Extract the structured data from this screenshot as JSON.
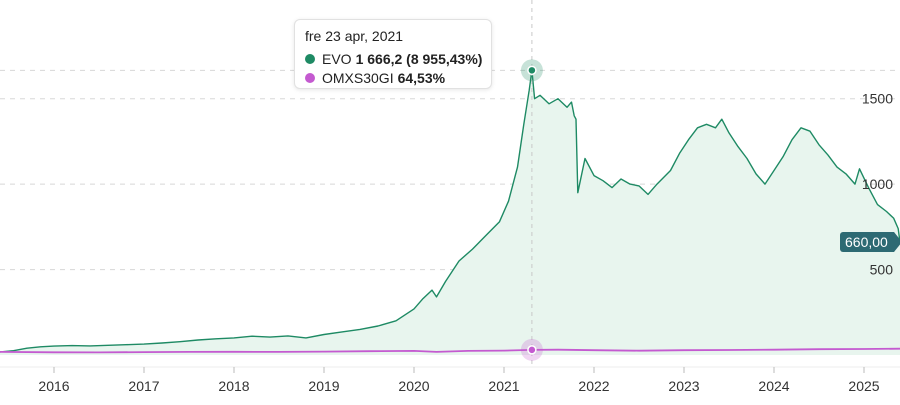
{
  "colors": {
    "evo": "#1e8a64",
    "evo_fill": "#e8f5ee",
    "omx": "#c45ad0",
    "gridline": "#d8d8d8",
    "badge": "#2d6a73"
  },
  "tooltip": {
    "date": "fre 23 apr, 2021",
    "rows": [
      {
        "name": "EVO",
        "value": "1 666,2 (8 955,43%)",
        "color": "#1e8a64"
      },
      {
        "name": "OMXS30GI",
        "value": "64,53%",
        "color": "#c45ad0"
      }
    ]
  },
  "last_price_label": "660,00",
  "chart_data": {
    "type": "line",
    "y_ticks": [
      {
        "value": 500,
        "label": "500"
      },
      {
        "value": 1000,
        "label": "1000"
      },
      {
        "value": 1500,
        "label": "1500"
      }
    ],
    "x_ticks": [
      {
        "year": 2016,
        "label": "2016"
      },
      {
        "year": 2017,
        "label": "2017"
      },
      {
        "year": 2018,
        "label": "2018"
      },
      {
        "year": 2019,
        "label": "2019"
      },
      {
        "year": 2020,
        "label": "2020"
      },
      {
        "year": 2021,
        "label": "2021"
      },
      {
        "year": 2022,
        "label": "2022"
      },
      {
        "year": 2023,
        "label": "2023"
      },
      {
        "year": 2024,
        "label": "2024"
      },
      {
        "year": 2025,
        "label": "2025"
      }
    ],
    "xlim": [
      2015.4,
      2025.4
    ],
    "ylim": [
      0,
      1750
    ],
    "highlight": {
      "x": 2021.31,
      "evo": 1666.2,
      "omx_price": 30
    },
    "grid": "horizontal",
    "series": [
      {
        "name": "EVO",
        "area": true,
        "points": [
          [
            2015.4,
            18
          ],
          [
            2015.55,
            25
          ],
          [
            2015.7,
            40
          ],
          [
            2015.85,
            48
          ],
          [
            2016.0,
            52
          ],
          [
            2016.2,
            55
          ],
          [
            2016.4,
            53
          ],
          [
            2016.6,
            57
          ],
          [
            2016.8,
            60
          ],
          [
            2017.0,
            64
          ],
          [
            2017.2,
            70
          ],
          [
            2017.4,
            78
          ],
          [
            2017.6,
            88
          ],
          [
            2017.8,
            95
          ],
          [
            2018.0,
            100
          ],
          [
            2018.2,
            110
          ],
          [
            2018.4,
            105
          ],
          [
            2018.6,
            112
          ],
          [
            2018.8,
            100
          ],
          [
            2019.0,
            120
          ],
          [
            2019.2,
            135
          ],
          [
            2019.4,
            150
          ],
          [
            2019.6,
            170
          ],
          [
            2019.8,
            200
          ],
          [
            2020.0,
            270
          ],
          [
            2020.1,
            330
          ],
          [
            2020.2,
            380
          ],
          [
            2020.25,
            340
          ],
          [
            2020.35,
            430
          ],
          [
            2020.5,
            550
          ],
          [
            2020.65,
            620
          ],
          [
            2020.8,
            700
          ],
          [
            2020.95,
            780
          ],
          [
            2021.05,
            900
          ],
          [
            2021.15,
            1100
          ],
          [
            2021.22,
            1350
          ],
          [
            2021.28,
            1550
          ],
          [
            2021.31,
            1666.2
          ],
          [
            2021.34,
            1500
          ],
          [
            2021.4,
            1520
          ],
          [
            2021.5,
            1470
          ],
          [
            2021.6,
            1500
          ],
          [
            2021.7,
            1450
          ],
          [
            2021.75,
            1480
          ],
          [
            2021.78,
            1400
          ],
          [
            2021.8,
            1380
          ],
          [
            2021.82,
            950
          ],
          [
            2021.9,
            1150
          ],
          [
            2022.0,
            1050
          ],
          [
            2022.1,
            1020
          ],
          [
            2022.2,
            980
          ],
          [
            2022.3,
            1030
          ],
          [
            2022.4,
            1000
          ],
          [
            2022.5,
            990
          ],
          [
            2022.6,
            940
          ],
          [
            2022.7,
            1000
          ],
          [
            2022.85,
            1080
          ],
          [
            2022.95,
            1180
          ],
          [
            2023.05,
            1260
          ],
          [
            2023.15,
            1330
          ],
          [
            2023.25,
            1350
          ],
          [
            2023.35,
            1330
          ],
          [
            2023.42,
            1380
          ],
          [
            2023.5,
            1300
          ],
          [
            2023.6,
            1220
          ],
          [
            2023.7,
            1150
          ],
          [
            2023.8,
            1060
          ],
          [
            2023.9,
            1000
          ],
          [
            2024.0,
            1080
          ],
          [
            2024.1,
            1160
          ],
          [
            2024.2,
            1260
          ],
          [
            2024.3,
            1330
          ],
          [
            2024.4,
            1310
          ],
          [
            2024.5,
            1230
          ],
          [
            2024.6,
            1170
          ],
          [
            2024.7,
            1100
          ],
          [
            2024.8,
            1060
          ],
          [
            2024.9,
            1000
          ],
          [
            2024.95,
            1090
          ],
          [
            2025.05,
            980
          ],
          [
            2025.15,
            880
          ],
          [
            2025.25,
            840
          ],
          [
            2025.33,
            800
          ],
          [
            2025.38,
            740
          ],
          [
            2025.4,
            660
          ]
        ]
      },
      {
        "name": "OMXS30GI",
        "area": false,
        "points": [
          [
            2015.4,
            18
          ],
          [
            2016.0,
            16
          ],
          [
            2016.5,
            15
          ],
          [
            2017.0,
            17
          ],
          [
            2017.5,
            18
          ],
          [
            2018.0,
            19
          ],
          [
            2018.5,
            18
          ],
          [
            2019.0,
            20
          ],
          [
            2019.5,
            22
          ],
          [
            2020.0,
            24
          ],
          [
            2020.25,
            18
          ],
          [
            2020.6,
            24
          ],
          [
            2021.0,
            26
          ],
          [
            2021.31,
            30
          ],
          [
            2021.6,
            31
          ],
          [
            2022.0,
            28
          ],
          [
            2022.5,
            25
          ],
          [
            2023.0,
            28
          ],
          [
            2023.5,
            29
          ],
          [
            2024.0,
            31
          ],
          [
            2024.5,
            34
          ],
          [
            2025.0,
            35
          ],
          [
            2025.4,
            37
          ]
        ]
      }
    ]
  }
}
